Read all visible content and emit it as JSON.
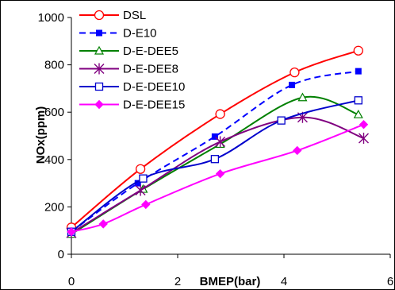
{
  "chart_data": {
    "type": "line",
    "title": "",
    "xlabel": "BMEP(bar)",
    "ylabel": "NOx(ppm)",
    "xlim": [
      0,
      6
    ],
    "ylim": [
      0,
      1000
    ],
    "xticks": [
      "0",
      "2",
      "4",
      "6"
    ],
    "yticks": [
      "0",
      "200",
      "400",
      "600",
      "800",
      "1000"
    ],
    "grid": false,
    "legend_position": "top-left",
    "series": [
      {
        "name": "DSL",
        "color": "#ff0000",
        "dash": "",
        "marker": "circle-open",
        "points": [
          [
            0,
            113
          ],
          [
            1.3,
            360
          ],
          [
            2.8,
            592
          ],
          [
            4.2,
            768
          ],
          [
            5.4,
            860
          ]
        ]
      },
      {
        "name": "D-E10",
        "color": "#0000ff",
        "dash": "8,5",
        "marker": "square-filled",
        "points": [
          [
            0,
            95
          ],
          [
            1.25,
            300
          ],
          [
            2.7,
            497
          ],
          [
            4.15,
            715
          ],
          [
            5.4,
            773
          ]
        ]
      },
      {
        "name": "D-E-DEE5",
        "color": "#008000",
        "dash": "",
        "marker": "triangle-open",
        "points": [
          [
            0,
            85
          ],
          [
            1.35,
            275
          ],
          [
            2.8,
            465
          ],
          [
            4.35,
            662
          ],
          [
            5.4,
            590
          ]
        ]
      },
      {
        "name": "D-E-DEE8",
        "color": "#800080",
        "dash": "",
        "marker": "asterisk",
        "points": [
          [
            0,
            90
          ],
          [
            1.3,
            270
          ],
          [
            2.8,
            475
          ],
          [
            4.35,
            578
          ],
          [
            5.5,
            490
          ]
        ]
      },
      {
        "name": "D-E-DEE10",
        "color": "#0000cc",
        "dash": "",
        "marker": "square-open",
        "points": [
          [
            0,
            95
          ],
          [
            1.35,
            320
          ],
          [
            2.7,
            402
          ],
          [
            3.95,
            565
          ],
          [
            5.4,
            650
          ]
        ]
      },
      {
        "name": "D-E-DEE15",
        "color": "#ff00ff",
        "dash": "",
        "marker": "diamond-filled",
        "points": [
          [
            0,
            95
          ],
          [
            0.6,
            128
          ],
          [
            1.4,
            210
          ],
          [
            2.8,
            340
          ],
          [
            4.25,
            438
          ],
          [
            5.5,
            548
          ]
        ]
      }
    ]
  }
}
